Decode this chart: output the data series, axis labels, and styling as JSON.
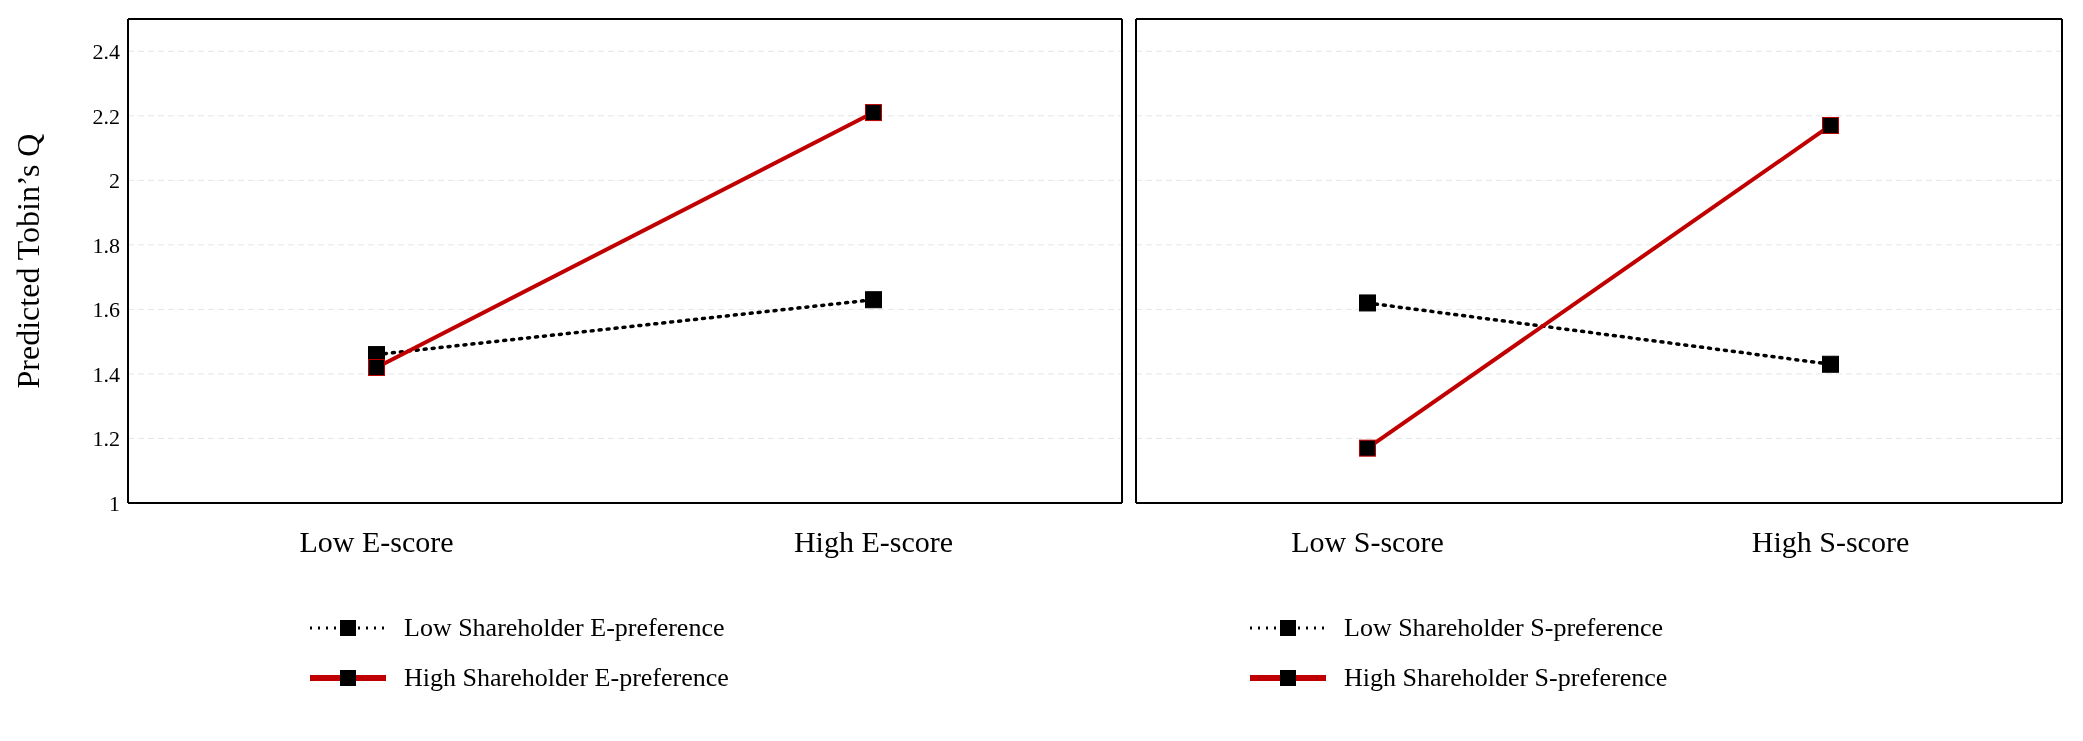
{
  "chart_data": [
    {
      "type": "line",
      "ylabel": "Predicted Tobin’s Q",
      "categories": [
        "Low E-score",
        "High E-score"
      ],
      "ylim": [
        1,
        2.5
      ],
      "yticks": [
        1,
        1.2,
        1.4,
        1.6,
        1.8,
        2,
        2.2,
        2.4
      ],
      "grid": "y",
      "legend": "bottom",
      "marker": "square",
      "series": [
        {
          "name": "Low Shareholder E-preference",
          "color": "#000000",
          "line_style": "dotted",
          "values": [
            1.46,
            1.63
          ]
        },
        {
          "name": "High Shareholder E-preference",
          "color": "#c00000",
          "line_style": "solid",
          "values": [
            1.42,
            2.21
          ]
        }
      ]
    },
    {
      "type": "line",
      "categories": [
        "Low S-score",
        "High S-score"
      ],
      "ylim": [
        1,
        2.5
      ],
      "yticks": [
        1,
        1.2,
        1.4,
        1.6,
        1.8,
        2,
        2.2,
        2.4
      ],
      "grid": "y",
      "legend": "bottom",
      "marker": "square",
      "tick_labels": "x",
      "series": [
        {
          "name": "Low Shareholder S-preference",
          "color": "#000000",
          "line_style": "dotted",
          "values": [
            1.62,
            1.43
          ]
        },
        {
          "name": "High Shareholder S-preference",
          "color": "#c00000",
          "line_style": "solid",
          "values": [
            1.17,
            2.17
          ]
        }
      ]
    }
  ]
}
